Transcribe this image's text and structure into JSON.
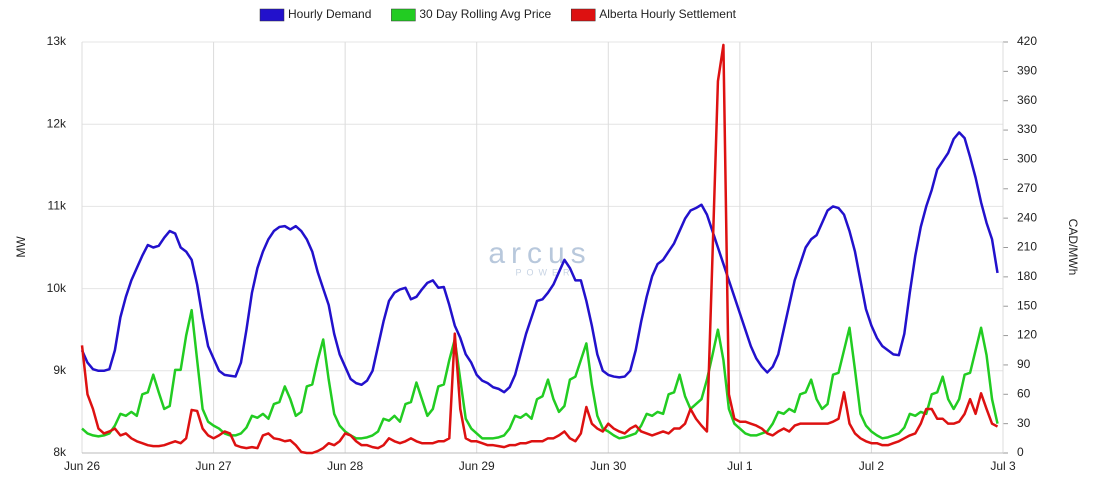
{
  "chart_data": {
    "type": "line",
    "watermark": "arcus",
    "watermark_sub": "POWER",
    "ylabel": "MW",
    "y2label": "CAD/MWh",
    "grid": true,
    "legend": "top",
    "xlim": [
      0,
      168
    ],
    "xticks": [
      {
        "value": 0,
        "label": "Jun 26"
      },
      {
        "value": 24,
        "label": "Jun 27"
      },
      {
        "value": 48,
        "label": "Jun 28"
      },
      {
        "value": 72,
        "label": "Jun 29"
      },
      {
        "value": 96,
        "label": "Jun 30"
      },
      {
        "value": 120,
        "label": "Jul 1"
      },
      {
        "value": 144,
        "label": "Jul 2"
      },
      {
        "value": 168,
        "label": "Jul 3"
      }
    ],
    "ylim": [
      8000,
      13000
    ],
    "yticks": [
      {
        "value": 8000,
        "label": "8k"
      },
      {
        "value": 9000,
        "label": "9k"
      },
      {
        "value": 10000,
        "label": "10k"
      },
      {
        "value": 11000,
        "label": "11k"
      },
      {
        "value": 12000,
        "label": "12k"
      },
      {
        "value": 13000,
        "label": "13k"
      }
    ],
    "y2lim": [
      0,
      420
    ],
    "y2ticks": [
      0,
      30,
      60,
      90,
      120,
      150,
      180,
      210,
      240,
      270,
      300,
      330,
      360,
      390,
      420
    ],
    "x": [
      0,
      1,
      2,
      3,
      4,
      5,
      6,
      7,
      8,
      9,
      10,
      11,
      12,
      13,
      14,
      15,
      16,
      17,
      18,
      19,
      20,
      21,
      22,
      23,
      24,
      25,
      26,
      27,
      28,
      29,
      30,
      31,
      32,
      33,
      34,
      35,
      36,
      37,
      38,
      39,
      40,
      41,
      42,
      43,
      44,
      45,
      46,
      47,
      48,
      49,
      50,
      51,
      52,
      53,
      54,
      55,
      56,
      57,
      58,
      59,
      60,
      61,
      62,
      63,
      64,
      65,
      66,
      67,
      68,
      69,
      70,
      71,
      72,
      73,
      74,
      75,
      76,
      77,
      78,
      79,
      80,
      81,
      82,
      83,
      84,
      85,
      86,
      87,
      88,
      89,
      90,
      91,
      92,
      93,
      94,
      95,
      96,
      97,
      98,
      99,
      100,
      101,
      102,
      103,
      104,
      105,
      106,
      107,
      108,
      109,
      110,
      111,
      112,
      113,
      114,
      115,
      116,
      117,
      118,
      119,
      120,
      121,
      122,
      123,
      124,
      125,
      126,
      127,
      128,
      129,
      130,
      131,
      132,
      133,
      134,
      135,
      136,
      137,
      138,
      139,
      140,
      141,
      142,
      143,
      144,
      145,
      146,
      147,
      148,
      149,
      150,
      151,
      152,
      153,
      154,
      155,
      156,
      157,
      158,
      159,
      160,
      161,
      162,
      163,
      164,
      165,
      166,
      167
    ],
    "series": [
      {
        "name": "Hourly Demand",
        "color": "#2211cc",
        "axis": "y",
        "values": [
          9250,
          9100,
          9020,
          9000,
          9000,
          9020,
          9250,
          9650,
          9900,
          10100,
          10250,
          10400,
          10530,
          10500,
          10520,
          10620,
          10700,
          10670,
          10500,
          10450,
          10350,
          10050,
          9650,
          9300,
          9150,
          9000,
          8950,
          8940,
          8930,
          9100,
          9500,
          9950,
          10250,
          10450,
          10600,
          10700,
          10750,
          10760,
          10720,
          10760,
          10700,
          10600,
          10450,
          10200,
          10000,
          9800,
          9450,
          9200,
          9050,
          8900,
          8850,
          8830,
          8880,
          9000,
          9300,
          9600,
          9850,
          9950,
          9990,
          10010,
          9870,
          9900,
          9990,
          10070,
          10100,
          10010,
          10020,
          9800,
          9550,
          9400,
          9200,
          9100,
          8950,
          8880,
          8850,
          8800,
          8780,
          8740,
          8800,
          8950,
          9200,
          9450,
          9650,
          9850,
          9870,
          9950,
          10050,
          10200,
          10350,
          10250,
          10100,
          10100,
          9850,
          9550,
          9200,
          9000,
          8950,
          8930,
          8920,
          8930,
          9000,
          9250,
          9600,
          9900,
          10150,
          10300,
          10350,
          10450,
          10550,
          10700,
          10850,
          10950,
          10980,
          11020,
          10900,
          10700,
          10500,
          10300,
          10100,
          9900,
          9700,
          9500,
          9300,
          9150,
          9050,
          8980,
          9050,
          9200,
          9500,
          9800,
          10100,
          10300,
          10500,
          10600,
          10650,
          10800,
          10950,
          11000,
          10980,
          10900,
          10700,
          10450,
          10100,
          9750,
          9550,
          9400,
          9300,
          9250,
          9200,
          9190,
          9450,
          9950,
          10400,
          10750,
          11000,
          11200,
          11450,
          11550,
          11650,
          11820,
          11900,
          11830,
          11600,
          11350,
          11050,
          10800,
          10600,
          10190
        ]
      },
      {
        "name": "30 Day Rolling Avg Price",
        "color": "#22cc22",
        "axis": "y2",
        "values": [
          25,
          20,
          18,
          17,
          18,
          20,
          28,
          40,
          38,
          42,
          38,
          60,
          62,
          80,
          62,
          45,
          48,
          85,
          85,
          120,
          146,
          95,
          45,
          32,
          28,
          25,
          20,
          18,
          18,
          20,
          26,
          38,
          36,
          40,
          35,
          50,
          52,
          68,
          55,
          38,
          42,
          68,
          70,
          95,
          116,
          75,
          40,
          28,
          22,
          18,
          15,
          15,
          16,
          18,
          22,
          35,
          33,
          38,
          32,
          50,
          52,
          72,
          55,
          38,
          45,
          68,
          70,
          95,
          116,
          75,
          35,
          25,
          20,
          15,
          15,
          15,
          16,
          18,
          25,
          38,
          36,
          40,
          35,
          55,
          58,
          75,
          55,
          42,
          48,
          75,
          78,
          95,
          112,
          70,
          38,
          25,
          22,
          18,
          15,
          16,
          18,
          20,
          28,
          40,
          38,
          42,
          40,
          60,
          62,
          80,
          58,
          45,
          50,
          55,
          75,
          100,
          126,
          95,
          45,
          30,
          25,
          20,
          18,
          18,
          20,
          22,
          30,
          42,
          40,
          45,
          42,
          60,
          62,
          75,
          55,
          45,
          50,
          80,
          82,
          105,
          128,
          85,
          40,
          28,
          22,
          18,
          15,
          16,
          18,
          20,
          26,
          40,
          38,
          42,
          40,
          60,
          62,
          78,
          55,
          45,
          55,
          80,
          82,
          105,
          128,
          100,
          55,
          30
        ]
      },
      {
        "name": "Alberta Hourly Settlement",
        "color": "#dd1111",
        "axis": "y2",
        "values": [
          110,
          60,
          45,
          25,
          20,
          22,
          25,
          18,
          20,
          15,
          12,
          10,
          8,
          7,
          7,
          8,
          10,
          12,
          10,
          15,
          44,
          43,
          25,
          18,
          15,
          18,
          22,
          20,
          8,
          6,
          5,
          6,
          5,
          18,
          20,
          15,
          14,
          12,
          13,
          8,
          1,
          0,
          0,
          2,
          5,
          10,
          8,
          12,
          20,
          18,
          12,
          8,
          8,
          6,
          5,
          8,
          15,
          12,
          10,
          12,
          15,
          12,
          10,
          10,
          10,
          12,
          12,
          15,
          122,
          45,
          15,
          12,
          12,
          10,
          8,
          8,
          7,
          6,
          8,
          8,
          10,
          10,
          12,
          12,
          12,
          15,
          15,
          18,
          22,
          15,
          12,
          20,
          47,
          30,
          25,
          22,
          30,
          25,
          22,
          20,
          25,
          28,
          22,
          20,
          18,
          20,
          22,
          20,
          25,
          25,
          30,
          45,
          35,
          28,
          22,
          200,
          380,
          417,
          60,
          35,
          32,
          32,
          30,
          28,
          25,
          20,
          18,
          22,
          25,
          22,
          28,
          30,
          30,
          30,
          30,
          30,
          30,
          32,
          35,
          62,
          30,
          20,
          15,
          12,
          10,
          10,
          8,
          8,
          10,
          12,
          15,
          18,
          20,
          30,
          45,
          45,
          35,
          35,
          30,
          30,
          32,
          40,
          55,
          40,
          61,
          45,
          30,
          27
        ]
      }
    ]
  }
}
